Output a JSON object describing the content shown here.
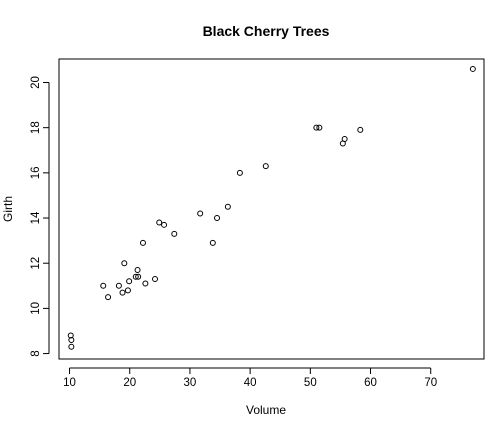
{
  "chart_data": {
    "type": "scatter",
    "title": "Black Cherry Trees",
    "xlabel": "Volume",
    "ylabel": "Girth",
    "xlim": [
      8.25,
      78.85
    ],
    "ylim": [
      7.76,
      21.04
    ],
    "xticks": [
      10,
      20,
      30,
      40,
      50,
      60,
      70
    ],
    "yticks": [
      8,
      10,
      12,
      14,
      16,
      18,
      20
    ],
    "grid": false,
    "points": [
      {
        "x": 10.3,
        "y": 8.3
      },
      {
        "x": 10.3,
        "y": 8.6
      },
      {
        "x": 10.2,
        "y": 8.8
      },
      {
        "x": 16.4,
        "y": 10.5
      },
      {
        "x": 18.8,
        "y": 10.7
      },
      {
        "x": 19.7,
        "y": 10.8
      },
      {
        "x": 15.6,
        "y": 11.0
      },
      {
        "x": 18.2,
        "y": 11.0
      },
      {
        "x": 22.6,
        "y": 11.1
      },
      {
        "x": 19.9,
        "y": 11.2
      },
      {
        "x": 24.2,
        "y": 11.3
      },
      {
        "x": 21.0,
        "y": 11.4
      },
      {
        "x": 21.4,
        "y": 11.4
      },
      {
        "x": 21.3,
        "y": 11.7
      },
      {
        "x": 19.1,
        "y": 12.0
      },
      {
        "x": 22.2,
        "y": 12.9
      },
      {
        "x": 33.8,
        "y": 12.9
      },
      {
        "x": 27.4,
        "y": 13.3
      },
      {
        "x": 25.7,
        "y": 13.7
      },
      {
        "x": 24.9,
        "y": 13.8
      },
      {
        "x": 34.5,
        "y": 14.0
      },
      {
        "x": 31.7,
        "y": 14.2
      },
      {
        "x": 36.3,
        "y": 14.5
      },
      {
        "x": 38.3,
        "y": 16.0
      },
      {
        "x": 42.6,
        "y": 16.3
      },
      {
        "x": 55.4,
        "y": 17.3
      },
      {
        "x": 55.7,
        "y": 17.5
      },
      {
        "x": 58.3,
        "y": 17.9
      },
      {
        "x": 51.5,
        "y": 18.0
      },
      {
        "x": 51.0,
        "y": 18.0
      },
      {
        "x": 77.0,
        "y": 20.6
      }
    ]
  }
}
